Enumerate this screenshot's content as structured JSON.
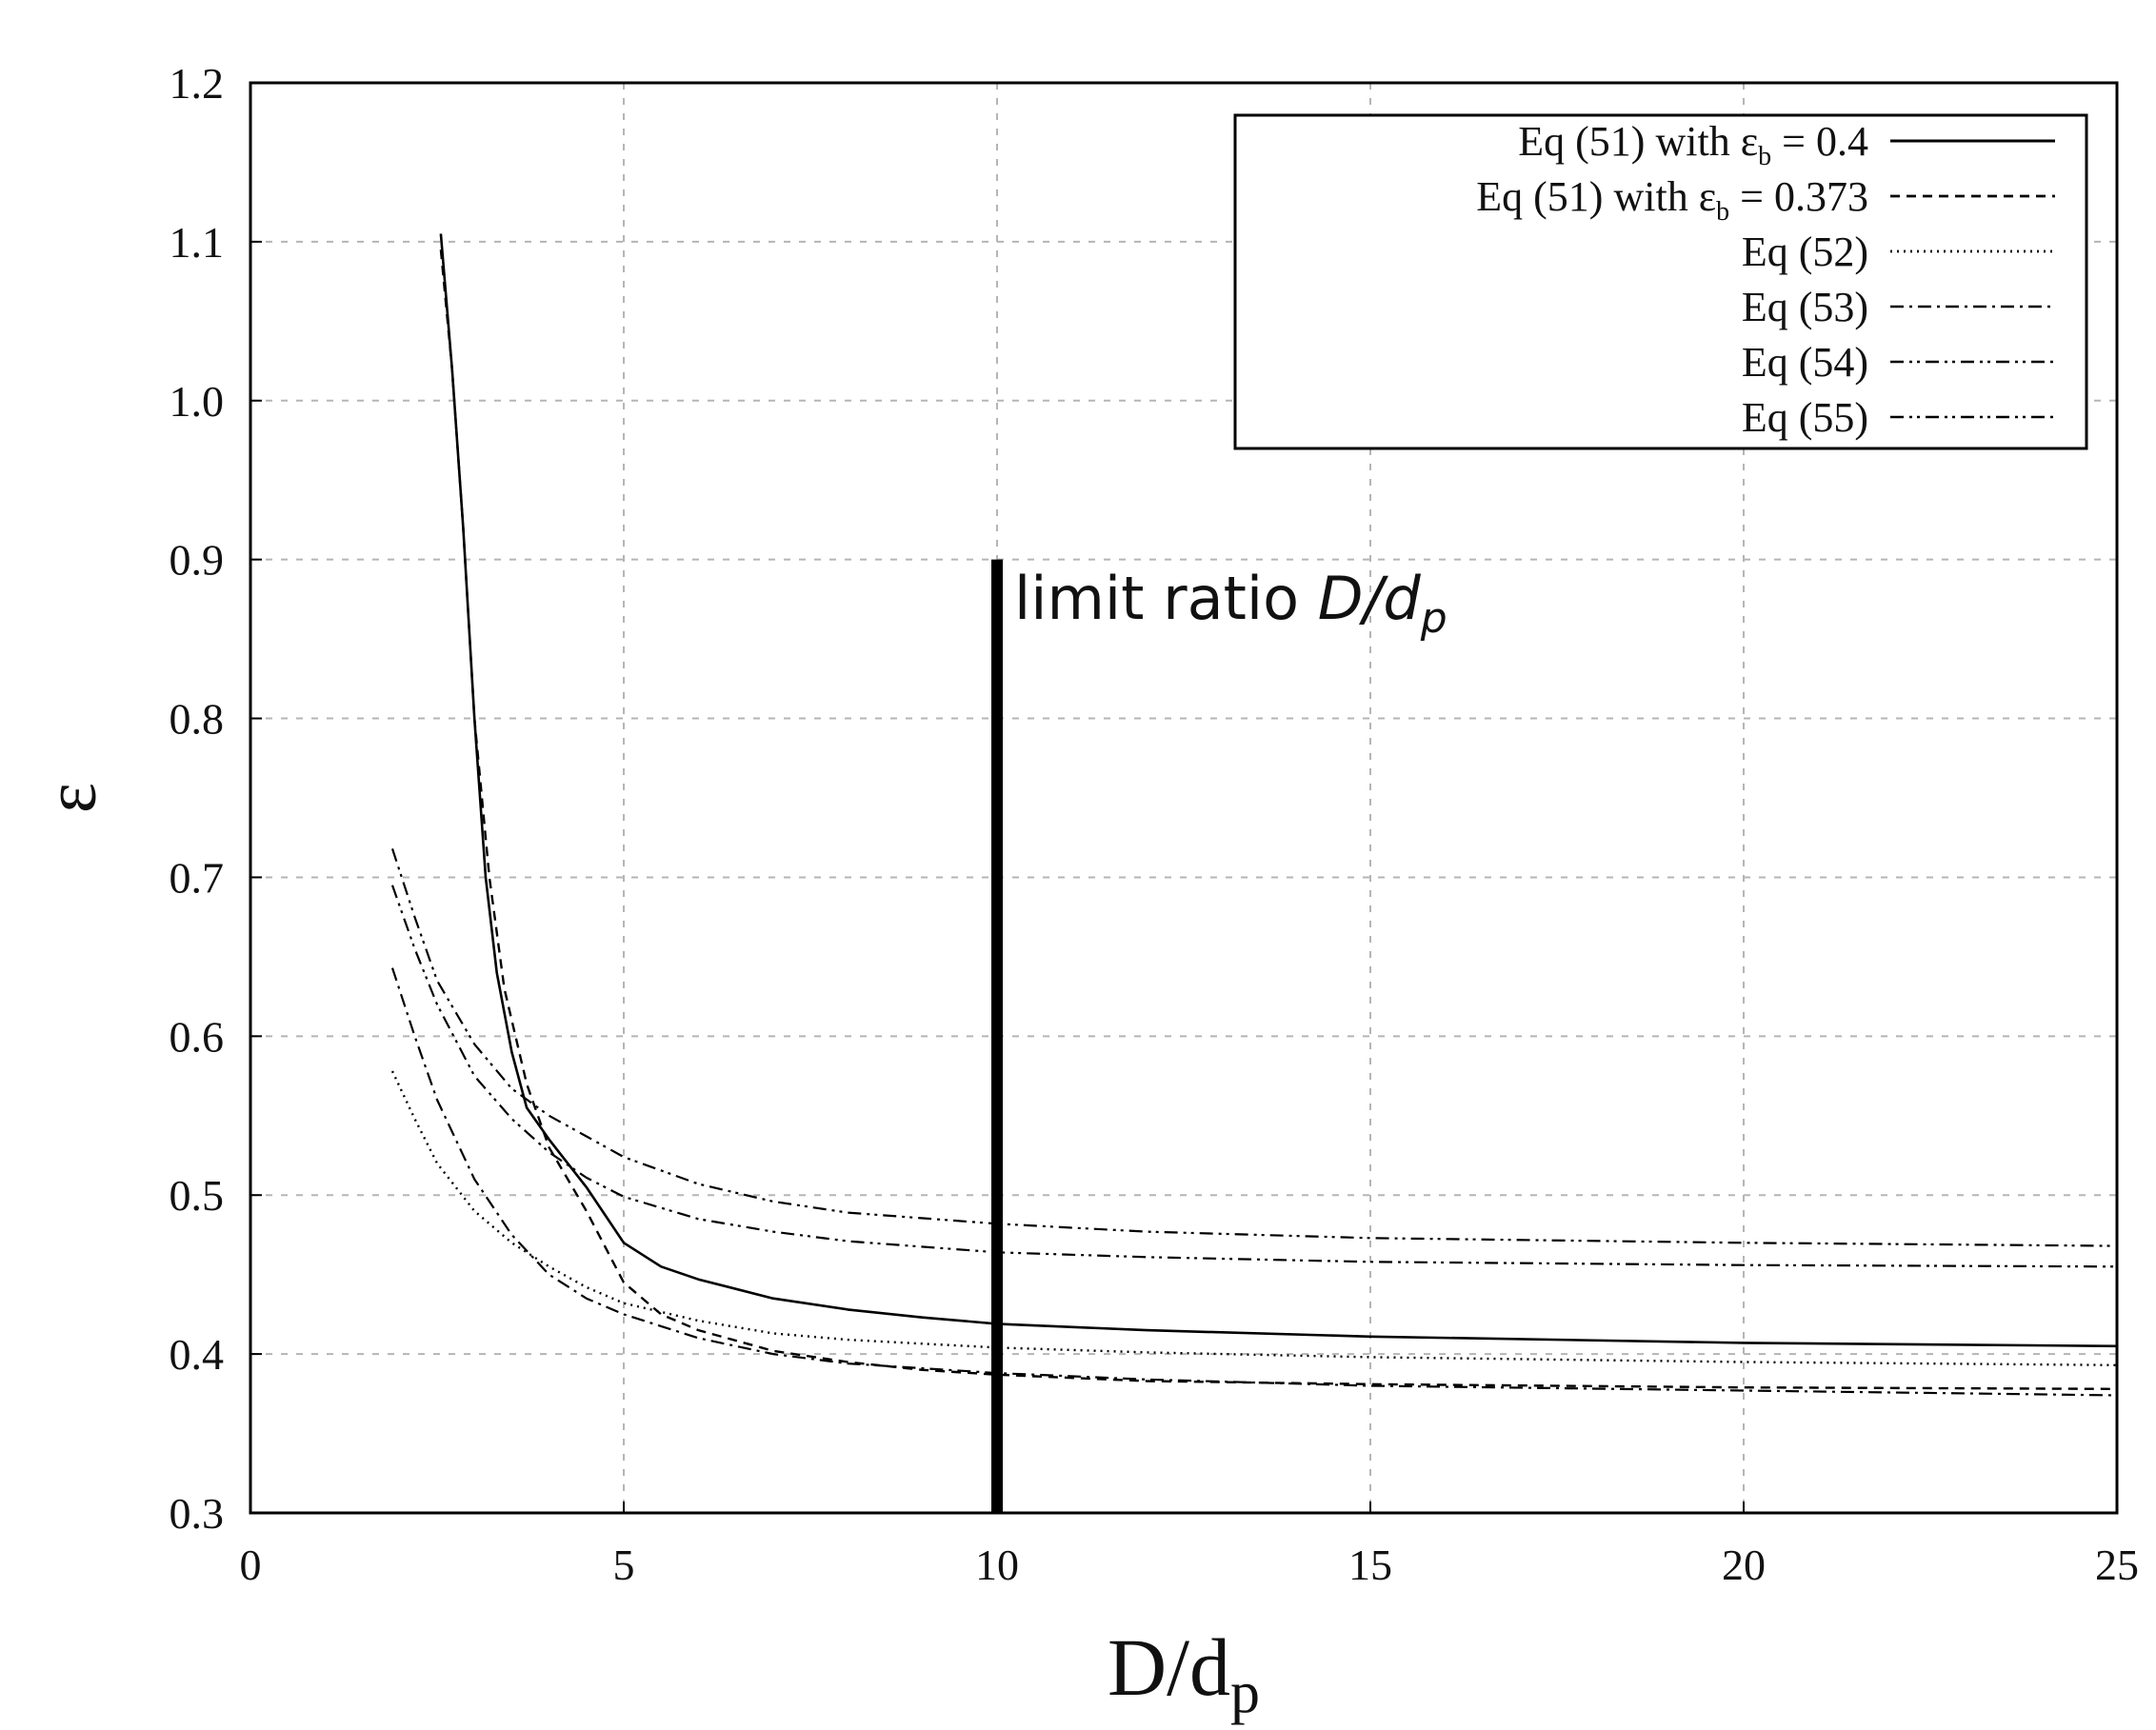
{
  "chart_data": {
    "type": "line",
    "title": "",
    "xlabel": "D/d",
    "xlabel_sub": "p",
    "ylabel": "ε",
    "xlim": [
      0,
      25
    ],
    "ylim": [
      0.3,
      1.2
    ],
    "xticks": [
      0,
      5,
      10,
      15,
      20,
      25
    ],
    "yticks": [
      0.3,
      0.4,
      0.5,
      0.6,
      0.7,
      0.8,
      0.9,
      1.0,
      1.1,
      1.2
    ],
    "xtick_labels": [
      "0",
      "5",
      "10",
      "15",
      "20",
      "25"
    ],
    "ytick_labels": [
      "0.3",
      "0.4",
      "0.5",
      "0.6",
      "0.7",
      "0.8",
      "0.9",
      "1.0",
      "1.1",
      "1.2"
    ],
    "grid": true,
    "legend_position": "top-right",
    "series": [
      {
        "name": "Eq (51) with εb = 0.4",
        "legend_main": "Eq (51) with ε",
        "legend_sub": "b",
        "legend_tail": " = 0.4",
        "style": "solid",
        "points": [
          [
            2.55,
            1.105
          ],
          [
            2.7,
            1.02
          ],
          [
            2.85,
            0.92
          ],
          [
            3.0,
            0.8
          ],
          [
            3.15,
            0.7
          ],
          [
            3.3,
            0.64
          ],
          [
            3.5,
            0.59
          ],
          [
            3.7,
            0.555
          ],
          [
            4.0,
            0.535
          ],
          [
            4.5,
            0.505
          ],
          [
            5.0,
            0.47
          ],
          [
            5.5,
            0.455
          ],
          [
            6.0,
            0.447
          ],
          [
            7.0,
            0.435
          ],
          [
            8.0,
            0.428
          ],
          [
            9.0,
            0.423
          ],
          [
            10.0,
            0.419
          ],
          [
            12.0,
            0.415
          ],
          [
            15.0,
            0.411
          ],
          [
            20.0,
            0.407
          ],
          [
            25.0,
            0.405
          ]
        ]
      },
      {
        "name": "Eq (51) with εb = 0.373",
        "legend_main": "Eq (51) with  ε",
        "legend_sub": "b",
        "legend_tail": "  = 0.373",
        "style": "dashed",
        "points": [
          [
            2.55,
            1.095
          ],
          [
            2.7,
            1.02
          ],
          [
            2.85,
            0.92
          ],
          [
            3.0,
            0.8
          ],
          [
            3.2,
            0.7
          ],
          [
            3.4,
            0.63
          ],
          [
            3.7,
            0.57
          ],
          [
            4.0,
            0.53
          ],
          [
            4.5,
            0.49
          ],
          [
            5.0,
            0.445
          ],
          [
            5.5,
            0.425
          ],
          [
            6.0,
            0.415
          ],
          [
            7.0,
            0.402
          ],
          [
            8.0,
            0.395
          ],
          [
            9.0,
            0.39
          ],
          [
            10.0,
            0.387
          ],
          [
            12.0,
            0.383
          ],
          [
            15.0,
            0.381
          ],
          [
            20.0,
            0.379
          ],
          [
            25.0,
            0.378
          ]
        ]
      },
      {
        "name": "Eq (52)",
        "legend_main": "Eq (52)",
        "style": "dotted",
        "points": [
          [
            1.9,
            0.578
          ],
          [
            2.2,
            0.548
          ],
          [
            2.5,
            0.52
          ],
          [
            3.0,
            0.49
          ],
          [
            3.5,
            0.47
          ],
          [
            4.0,
            0.455
          ],
          [
            4.5,
            0.442
          ],
          [
            5.0,
            0.432
          ],
          [
            6.0,
            0.421
          ],
          [
            7.0,
            0.413
          ],
          [
            8.0,
            0.409
          ],
          [
            10.0,
            0.404
          ],
          [
            12.0,
            0.401
          ],
          [
            15.0,
            0.398
          ],
          [
            20.0,
            0.395
          ],
          [
            25.0,
            0.393
          ]
        ]
      },
      {
        "name": "Eq (53)",
        "legend_main": "Eq (53)",
        "style": "dashdot",
        "points": [
          [
            1.9,
            0.643
          ],
          [
            2.2,
            0.6
          ],
          [
            2.5,
            0.56
          ],
          [
            3.0,
            0.51
          ],
          [
            3.5,
            0.475
          ],
          [
            4.0,
            0.45
          ],
          [
            4.5,
            0.435
          ],
          [
            5.0,
            0.425
          ],
          [
            6.0,
            0.41
          ],
          [
            7.0,
            0.4
          ],
          [
            8.0,
            0.394
          ],
          [
            10.0,
            0.388
          ],
          [
            12.0,
            0.384
          ],
          [
            15.0,
            0.38
          ],
          [
            20.0,
            0.377
          ],
          [
            25.0,
            0.374
          ]
        ]
      },
      {
        "name": "Eq (54)",
        "legend_main": "Eq (54)",
        "style": "dashdotdot",
        "points": [
          [
            1.9,
            0.718
          ],
          [
            2.2,
            0.675
          ],
          [
            2.5,
            0.635
          ],
          [
            3.0,
            0.595
          ],
          [
            3.5,
            0.567
          ],
          [
            4.0,
            0.55
          ],
          [
            4.5,
            0.537
          ],
          [
            5.0,
            0.524
          ],
          [
            6.0,
            0.507
          ],
          [
            7.0,
            0.496
          ],
          [
            8.0,
            0.489
          ],
          [
            10.0,
            0.482
          ],
          [
            12.0,
            0.477
          ],
          [
            15.0,
            0.473
          ],
          [
            20.0,
            0.47
          ],
          [
            25.0,
            0.468
          ]
        ]
      },
      {
        "name": "Eq (55)",
        "legend_main": "Eq (55)",
        "style": "dashdotdot",
        "points": [
          [
            1.9,
            0.695
          ],
          [
            2.2,
            0.655
          ],
          [
            2.5,
            0.62
          ],
          [
            3.0,
            0.575
          ],
          [
            3.5,
            0.548
          ],
          [
            4.0,
            0.527
          ],
          [
            4.5,
            0.511
          ],
          [
            5.0,
            0.499
          ],
          [
            6.0,
            0.485
          ],
          [
            7.0,
            0.477
          ],
          [
            8.0,
            0.471
          ],
          [
            10.0,
            0.464
          ],
          [
            12.0,
            0.461
          ],
          [
            15.0,
            0.458
          ],
          [
            20.0,
            0.456
          ],
          [
            25.0,
            0.455
          ]
        ]
      }
    ],
    "annotation": {
      "text": "limit ratio ",
      "text_italic": "D/d",
      "text_italic_sub": "p",
      "x": 10,
      "y_from": 0.3,
      "y_to": 0.9
    }
  }
}
